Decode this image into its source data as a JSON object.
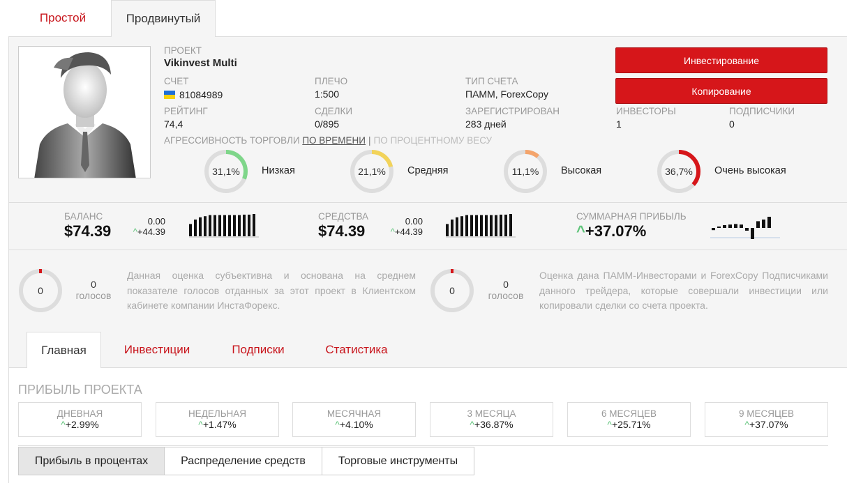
{
  "top_tabs": [
    "Простой",
    "Продвинутый"
  ],
  "project": {
    "label": "ПРОЕКТ",
    "name": "Vikinvest Multi"
  },
  "account": {
    "label": "СЧЕТ",
    "value": "81084989"
  },
  "leverage": {
    "label": "ПЛЕЧО",
    "value": "1:500"
  },
  "account_type": {
    "label": "ТИП СЧЕТА",
    "value": "ПАММ, ForexCopy"
  },
  "rating": {
    "label": "РЕЙТИНГ",
    "value": "74,4"
  },
  "trades": {
    "label": "СДЕЛКИ",
    "value": "0/895"
  },
  "registered": {
    "label": "ЗАРЕГИСТРИРОВАН",
    "value": "283 дней"
  },
  "investors": {
    "label": "ИНВЕСТОРЫ",
    "value": "1"
  },
  "subscribers": {
    "label": "ПОДПИСЧИКИ",
    "value": "0"
  },
  "buttons": {
    "invest": "Инвестирование",
    "copy": "Копирование"
  },
  "aggression": {
    "label": "АГРЕССИВНОСТЬ ТОРГОВЛИ",
    "by_time": "ПО ВРЕМЕНИ",
    "sep": "|",
    "by_weight": "ПО ПРОЦЕНТНОМУ ВЕСУ",
    "items": [
      {
        "percent": "31,1%",
        "fraction": 0.311,
        "name": "Низкая",
        "color": "#7fd68a"
      },
      {
        "percent": "21,1%",
        "fraction": 0.211,
        "name": "Средняя",
        "color": "#f2d35a"
      },
      {
        "percent": "11,1%",
        "fraction": 0.111,
        "name": "Высокая",
        "color": "#f4a46b"
      },
      {
        "percent": "36,7%",
        "fraction": 0.367,
        "name": "Очень высокая",
        "color": "#d6161a"
      }
    ]
  },
  "balance": {
    "label": "БАЛАНС",
    "value": "$74.39",
    "top": "0.00",
    "delta": "+44.39",
    "bars": [
      0.55,
      0.75,
      0.85,
      0.9,
      0.95,
      0.95,
      0.95,
      0.95,
      0.95,
      0.95,
      0.95,
      0.97,
      0.97,
      1.0
    ]
  },
  "funds": {
    "label": "СРЕДСТВА",
    "value": "$74.39",
    "top": "0.00",
    "delta": "+44.39",
    "bars": [
      0.55,
      0.75,
      0.85,
      0.9,
      0.95,
      0.95,
      0.95,
      0.95,
      0.95,
      0.95,
      0.95,
      0.97,
      0.97,
      1.0
    ]
  },
  "total_profit": {
    "label": "СУММАРНАЯ ПРИБЫЛЬ",
    "value": "+37.07%",
    "bars": [
      -0.2,
      0.1,
      0.25,
      0.3,
      0.35,
      0.3,
      -0.25,
      -1.0,
      0.6,
      0.75,
      1.0
    ]
  },
  "votes": [
    {
      "count": "0",
      "word": "голосов",
      "donut": "0",
      "text": "Данная оценка субъективна и основана на среднем показателе голосов отданных за этот проект в Клиентском кабинете компании ИнстаФорекс."
    },
    {
      "count": "0",
      "word": "голосов",
      "donut": "0",
      "text": "Оценка дана ПАММ-Инвесторами и ForexCopy Подписчиками данного трейдера, которые совершали инвестиции или копировали сделки со счета проекта."
    }
  ],
  "sub_tabs": [
    "Главная",
    "Инвестиции",
    "Подписки",
    "Статистика"
  ],
  "profit": {
    "title": "ПРИБЫЛЬ ПРОЕКТА",
    "periods": [
      {
        "label": "ДНЕВНАЯ",
        "value": "+2.99%"
      },
      {
        "label": "НЕДЕЛЬНАЯ",
        "value": "+1.47%"
      },
      {
        "label": "МЕСЯЧНАЯ",
        "value": "+4.10%"
      },
      {
        "label": "3 МЕСЯЦА",
        "value": "+36.87%"
      },
      {
        "label": "6 МЕСЯЦЕВ",
        "value": "+25.71%"
      },
      {
        "label": "9 МЕСЯЦЕВ",
        "value": "+37.07%"
      }
    ]
  },
  "bottom_tabs": [
    "Прибыль в процентах",
    "Распределение средств",
    "Торговые инструменты"
  ]
}
